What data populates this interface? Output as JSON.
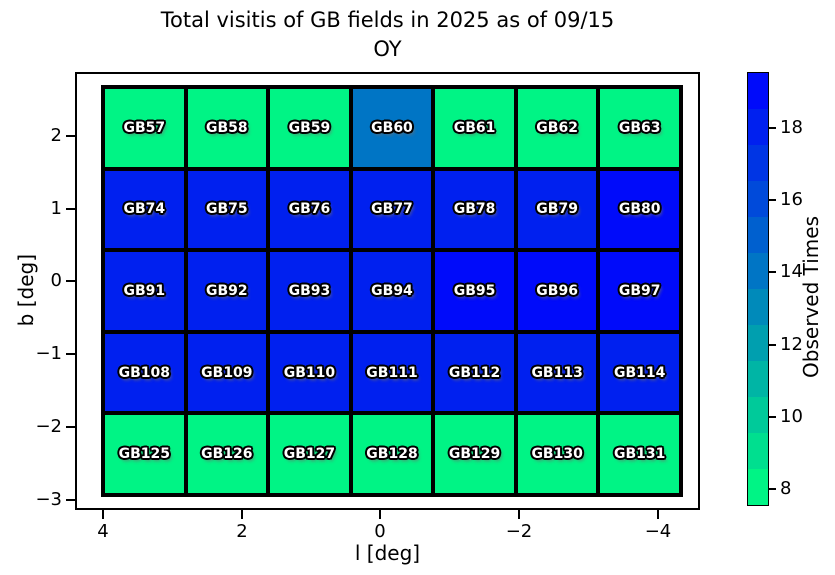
{
  "title": {
    "line1": "Total visitis of GB fields in 2025 as of 09/15",
    "line2": "OY"
  },
  "x_axis": {
    "label": "l [deg]",
    "ticks": [
      "4",
      "2",
      "0",
      "−2",
      "−4"
    ]
  },
  "y_axis": {
    "label": "b [deg]",
    "ticks": [
      "2",
      "1",
      "0",
      "−1",
      "−2",
      "−3"
    ]
  },
  "colorbar": {
    "label": "Observed Times",
    "tick_labels": [
      "18",
      "16",
      "14",
      "12",
      "10",
      "8"
    ]
  },
  "chart_data": {
    "type": "heatmap",
    "title": "Total visitis of GB fields in 2025 as of 09/15\nOY",
    "xlabel": "l [deg]",
    "ylabel": "b [deg]",
    "x_axis_inverted": true,
    "x_range_shown": [
      4.4,
      -4.6
    ],
    "y_range_shown": [
      2.9,
      -3.2
    ],
    "grid_columns": 7,
    "grid_rows": 5,
    "colormap": "winter_r, discrete 12 integer bins spanning 7.5 to 19.5",
    "colorbar_label": "Observed Times",
    "colorbar_ticks": [
      8,
      10,
      12,
      14,
      16,
      18
    ],
    "rows": [
      {
        "labels": [
          "GB57",
          "GB58",
          "GB59",
          "GB60",
          "GB61",
          "GB62",
          "GB63"
        ],
        "values": [
          8,
          8,
          8,
          14,
          8,
          8,
          8
        ]
      },
      {
        "labels": [
          "GB74",
          "GB75",
          "GB76",
          "GB77",
          "GB78",
          "GB79",
          "GB80"
        ],
        "values": [
          18,
          18,
          18,
          18,
          18,
          18,
          19
        ]
      },
      {
        "labels": [
          "GB91",
          "GB92",
          "GB93",
          "GB94",
          "GB95",
          "GB96",
          "GB97"
        ],
        "values": [
          18,
          18,
          18,
          18,
          19,
          19,
          19
        ]
      },
      {
        "labels": [
          "GB108",
          "GB109",
          "GB110",
          "GB111",
          "GB112",
          "GB113",
          "GB114"
        ],
        "values": [
          18,
          18,
          18,
          18,
          18,
          18,
          18
        ]
      },
      {
        "labels": [
          "GB125",
          "GB126",
          "GB127",
          "GB128",
          "GB129",
          "GB130",
          "GB131"
        ],
        "values": [
          8,
          8,
          8,
          8,
          8,
          8,
          8
        ]
      }
    ],
    "value_colors": {
      "8": "#00F485",
      "9": "#00DF8F",
      "10": "#00CA9A",
      "11": "#00B5A5",
      "12": "#009FAF",
      "13": "#008ABA",
      "14": "#0075C5",
      "15": "#0060CF",
      "16": "#004ADA",
      "17": "#0035E4",
      "18": "#0020EF",
      "19": "#000BFA"
    }
  }
}
